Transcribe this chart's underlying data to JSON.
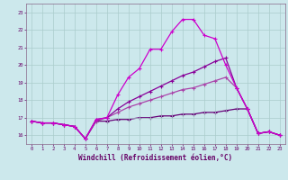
{
  "xlabel": "Windchill (Refroidissement éolien,°C)",
  "bg_color": "#cce8ec",
  "grid_color": "#aacccc",
  "line_color1": "#cc00cc",
  "line_color2": "#880099",
  "line_color3": "#aa44aa",
  "line_color4": "#660077",
  "xlim": [
    -0.5,
    23.5
  ],
  "ylim": [
    15.5,
    23.5
  ],
  "yticks": [
    16,
    17,
    18,
    19,
    20,
    21,
    22,
    23
  ],
  "xticks": [
    0,
    1,
    2,
    3,
    4,
    5,
    6,
    7,
    8,
    9,
    10,
    11,
    12,
    13,
    14,
    15,
    16,
    17,
    18,
    19,
    20,
    21,
    22,
    23
  ],
  "line1_x": [
    0,
    1,
    2,
    3,
    4,
    5,
    6,
    7,
    8,
    9,
    10,
    11,
    12,
    13,
    14,
    15,
    16,
    17,
    18,
    19,
    20,
    21,
    22,
    23
  ],
  "line1_y": [
    16.8,
    16.7,
    16.7,
    16.6,
    16.5,
    15.8,
    16.9,
    17.0,
    18.3,
    19.3,
    19.8,
    20.9,
    20.9,
    21.9,
    22.6,
    22.6,
    21.7,
    21.5,
    20.0,
    18.7,
    17.5,
    16.1,
    16.2,
    16.0
  ],
  "line2_x": [
    0,
    1,
    2,
    3,
    4,
    5,
    6,
    7,
    8,
    9,
    10,
    11,
    12,
    13,
    14,
    15,
    16,
    17,
    18,
    19,
    20,
    21,
    22,
    23
  ],
  "line2_y": [
    16.8,
    16.7,
    16.7,
    16.6,
    16.5,
    15.8,
    16.9,
    17.0,
    17.5,
    17.9,
    18.2,
    18.5,
    18.8,
    19.1,
    19.4,
    19.6,
    19.9,
    20.2,
    20.4,
    18.7,
    17.5,
    16.1,
    16.2,
    16.0
  ],
  "line3_x": [
    0,
    1,
    2,
    3,
    4,
    5,
    6,
    7,
    8,
    9,
    10,
    11,
    12,
    13,
    14,
    15,
    16,
    17,
    18,
    19,
    20,
    21,
    22,
    23
  ],
  "line3_y": [
    16.8,
    16.7,
    16.7,
    16.6,
    16.5,
    15.8,
    16.8,
    17.0,
    17.3,
    17.6,
    17.8,
    18.0,
    18.2,
    18.4,
    18.6,
    18.7,
    18.9,
    19.1,
    19.3,
    18.7,
    17.5,
    16.1,
    16.2,
    16.0
  ],
  "line4_x": [
    0,
    1,
    2,
    3,
    4,
    5,
    6,
    7,
    8,
    9,
    10,
    11,
    12,
    13,
    14,
    15,
    16,
    17,
    18,
    19,
    20,
    21,
    22,
    23
  ],
  "line4_y": [
    16.8,
    16.7,
    16.7,
    16.6,
    16.5,
    15.8,
    16.8,
    16.8,
    16.9,
    16.9,
    17.0,
    17.0,
    17.1,
    17.1,
    17.2,
    17.2,
    17.3,
    17.3,
    17.4,
    17.5,
    17.5,
    16.1,
    16.2,
    16.0
  ]
}
